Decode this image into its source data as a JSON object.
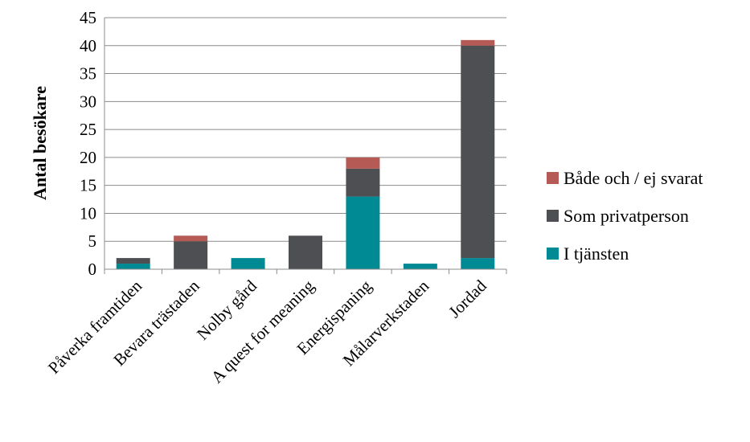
{
  "chart_data": {
    "type": "bar",
    "stacked": true,
    "title": "",
    "xlabel": "",
    "ylabel": "Antal besökare",
    "ylim": [
      0,
      45
    ],
    "yticks": [
      0,
      5,
      10,
      15,
      20,
      25,
      30,
      35,
      40,
      45
    ],
    "grid": true,
    "legend_position": "right",
    "categories": [
      "Påverka framtiden",
      "Bevara trästaden",
      "Nolby gård",
      "A quest for meaning",
      "Energispaning",
      "Målarverkstaden",
      "Jordad"
    ],
    "series": [
      {
        "name": "I tjänsten",
        "color": "#008B94",
        "values": [
          1,
          0,
          2,
          0,
          13,
          1,
          2
        ]
      },
      {
        "name": "Som privatperson",
        "color": "#4D4F53",
        "values": [
          1,
          5,
          0,
          6,
          5,
          0,
          38
        ]
      },
      {
        "name": "Både och / ej svarat",
        "color": "#B55A55",
        "values": [
          0,
          1,
          0,
          0,
          2,
          0,
          1
        ]
      }
    ]
  }
}
